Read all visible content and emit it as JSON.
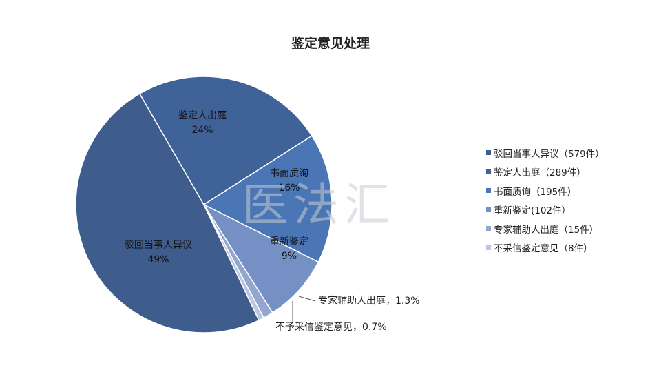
{
  "chart_data": {
    "type": "pie",
    "title": "鉴定意见处理",
    "slices": [
      {
        "name": "驳回当事人异议",
        "count": 579,
        "color": "#3e5d8c",
        "label": "驳回当事人异议",
        "pct_label": "49%",
        "legend": "驳回当事人异议（579件）"
      },
      {
        "name": "鉴定人出庭",
        "count": 289,
        "color": "#3f6299",
        "label": "鉴定人出庭",
        "pct_label": "24%",
        "legend": "鉴定人出庭（289件）"
      },
      {
        "name": "书面质询",
        "count": 195,
        "color": "#4a76b5",
        "label": "书面质询",
        "pct_label": "16%",
        "legend": "书面质询（195件）"
      },
      {
        "name": "重新鉴定",
        "count": 102,
        "color": "#7590c4",
        "label": "重新鉴定",
        "pct_label": "9%",
        "legend": "重新鉴定(102件）"
      },
      {
        "name": "专家辅助人出庭",
        "count": 15,
        "color": "#93a6cf",
        "label": "专家辅助人出庭，1.3%",
        "pct_label": "",
        "legend": "专家辅助人出庭（15件）"
      },
      {
        "name": "不予采信鉴定意见",
        "count": 8,
        "color": "#bcc6de",
        "label": "不予采信鉴定意见，0.7%",
        "pct_label": "",
        "legend": "不采信鉴定意见（8件）"
      }
    ],
    "legend_position": "right"
  },
  "watermark": "医法汇"
}
